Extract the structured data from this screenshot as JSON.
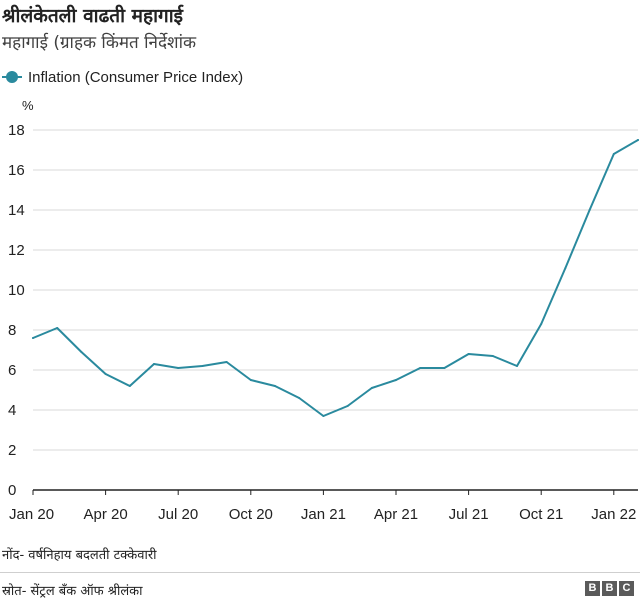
{
  "header": {
    "title": "श्रीलंकेतली वाढती महागाई",
    "subtitle": "महागाई (ग्राहक किंमत निर्देशांक"
  },
  "footer": {
    "note": "नोंद- वर्षनिहाय बदलती टक्केवारी",
    "source": "स्रोत- सेंट्रल बँक ऑफ श्रीलंका",
    "logo_letters": [
      "B",
      "B",
      "C"
    ]
  },
  "chart_data": {
    "type": "line",
    "ylabel": "%",
    "ylim": [
      0,
      18
    ],
    "yticks": [
      "0",
      "2",
      "4",
      "6",
      "8",
      "10",
      "12",
      "14",
      "16",
      "18"
    ],
    "xlim": [
      "Jan 20",
      "Feb 22"
    ],
    "xticks": [
      "Jan 20",
      "Apr 20",
      "Jul 20",
      "Oct 20",
      "Jan 21",
      "Apr 21",
      "Jul 21",
      "Oct 21",
      "Jan 22"
    ],
    "grid": "horizontal",
    "legend_position": "top-left",
    "categories": [
      "Jan 20",
      "Feb 20",
      "Mar 20",
      "Apr 20",
      "May 20",
      "Jun 20",
      "Jul 20",
      "Aug 20",
      "Sep 20",
      "Oct 20",
      "Nov 20",
      "Dec 20",
      "Jan 21",
      "Feb 21",
      "Mar 21",
      "Apr 21",
      "May 21",
      "Jun 21",
      "Jul 21",
      "Aug 21",
      "Sep 21",
      "Oct 21",
      "Nov 21",
      "Dec 21",
      "Jan 22",
      "Feb 22"
    ],
    "series": [
      {
        "name": "Inflation (Consumer Price Index)",
        "color": "#2a8a9e",
        "values": [
          7.6,
          8.1,
          6.9,
          5.8,
          5.2,
          6.3,
          6.1,
          6.2,
          6.4,
          5.5,
          5.2,
          4.6,
          3.7,
          4.2,
          5.1,
          5.5,
          6.1,
          6.1,
          6.8,
          6.7,
          6.2,
          8.3,
          11.1,
          14.0,
          16.8,
          17.5
        ]
      }
    ],
    "colors": {
      "grid": "#d9d9d9",
      "axis": "#222222"
    }
  }
}
